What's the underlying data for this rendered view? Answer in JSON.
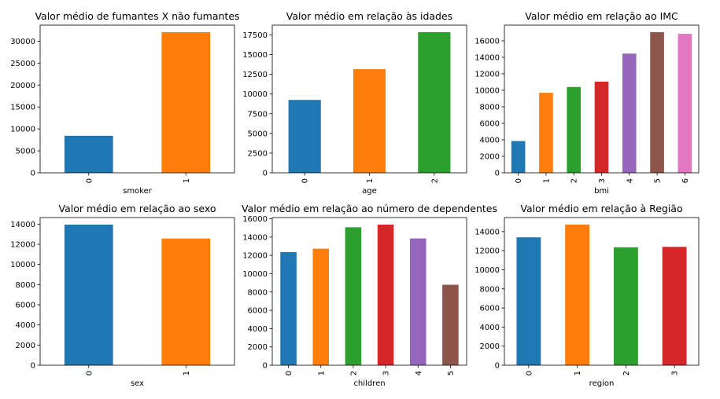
{
  "chart_data": [
    {
      "type": "bar",
      "title": "Valor médio de fumantes X não fumantes",
      "xlabel": "smoker",
      "ylabel": "",
      "categories": [
        "0",
        "1"
      ],
      "values": [
        8434,
        32050
      ],
      "ylim": [
        0,
        33650
      ],
      "yticks": [
        0,
        5000,
        10000,
        15000,
        20000,
        25000,
        30000
      ],
      "grid": false
    },
    {
      "type": "bar",
      "title": "Valor médio em relação às idades",
      "xlabel": "age",
      "ylabel": "",
      "categories": [
        "0",
        "1",
        "2"
      ],
      "values": [
        9250,
        13150,
        17850
      ],
      "ylim": [
        0,
        18740
      ],
      "yticks": [
        0,
        2500,
        5000,
        7500,
        10000,
        12500,
        15000,
        17500
      ],
      "grid": false
    },
    {
      "type": "bar",
      "title": "Valor médio em relação ao IMC",
      "xlabel": "bmi",
      "ylabel": "",
      "categories": [
        "0",
        "1",
        "2",
        "3",
        "4",
        "5",
        "6"
      ],
      "values": [
        3850,
        9700,
        10400,
        11050,
        14450,
        17050,
        16850
      ],
      "ylim": [
        0,
        17900
      ],
      "yticks": [
        0,
        2000,
        4000,
        6000,
        8000,
        10000,
        12000,
        14000,
        16000
      ],
      "grid": false
    },
    {
      "type": "bar",
      "title": "Valor médio em relação ao sexo",
      "xlabel": "sex",
      "ylabel": "",
      "categories": [
        "0",
        "1"
      ],
      "values": [
        13950,
        12570
      ],
      "ylim": [
        0,
        14650
      ],
      "yticks": [
        0,
        2000,
        4000,
        6000,
        8000,
        10000,
        12000,
        14000
      ],
      "grid": false
    },
    {
      "type": "bar",
      "title": "Valor médio em relação ao número de dependentes",
      "xlabel": "children",
      "ylabel": "",
      "categories": [
        "0",
        "1",
        "2",
        "3",
        "4",
        "5"
      ],
      "values": [
        12360,
        12730,
        15070,
        15360,
        13850,
        8790
      ],
      "ylim": [
        0,
        16130
      ],
      "yticks": [
        0,
        2000,
        4000,
        6000,
        8000,
        10000,
        12000,
        14000,
        16000
      ],
      "grid": false
    },
    {
      "type": "bar",
      "title": "Valor médio em relação à Região",
      "xlabel": "region",
      "ylabel": "",
      "categories": [
        "0",
        "1",
        "2",
        "3"
      ],
      "values": [
        13400,
        14740,
        12350,
        12400
      ],
      "ylim": [
        0,
        15470
      ],
      "yticks": [
        0,
        2000,
        4000,
        6000,
        8000,
        10000,
        12000,
        14000
      ],
      "grid": false
    }
  ],
  "colors": [
    "#1f77b4",
    "#ff7f0e",
    "#2ca02c",
    "#d62728",
    "#9467bd",
    "#8c564b",
    "#e377c2"
  ]
}
